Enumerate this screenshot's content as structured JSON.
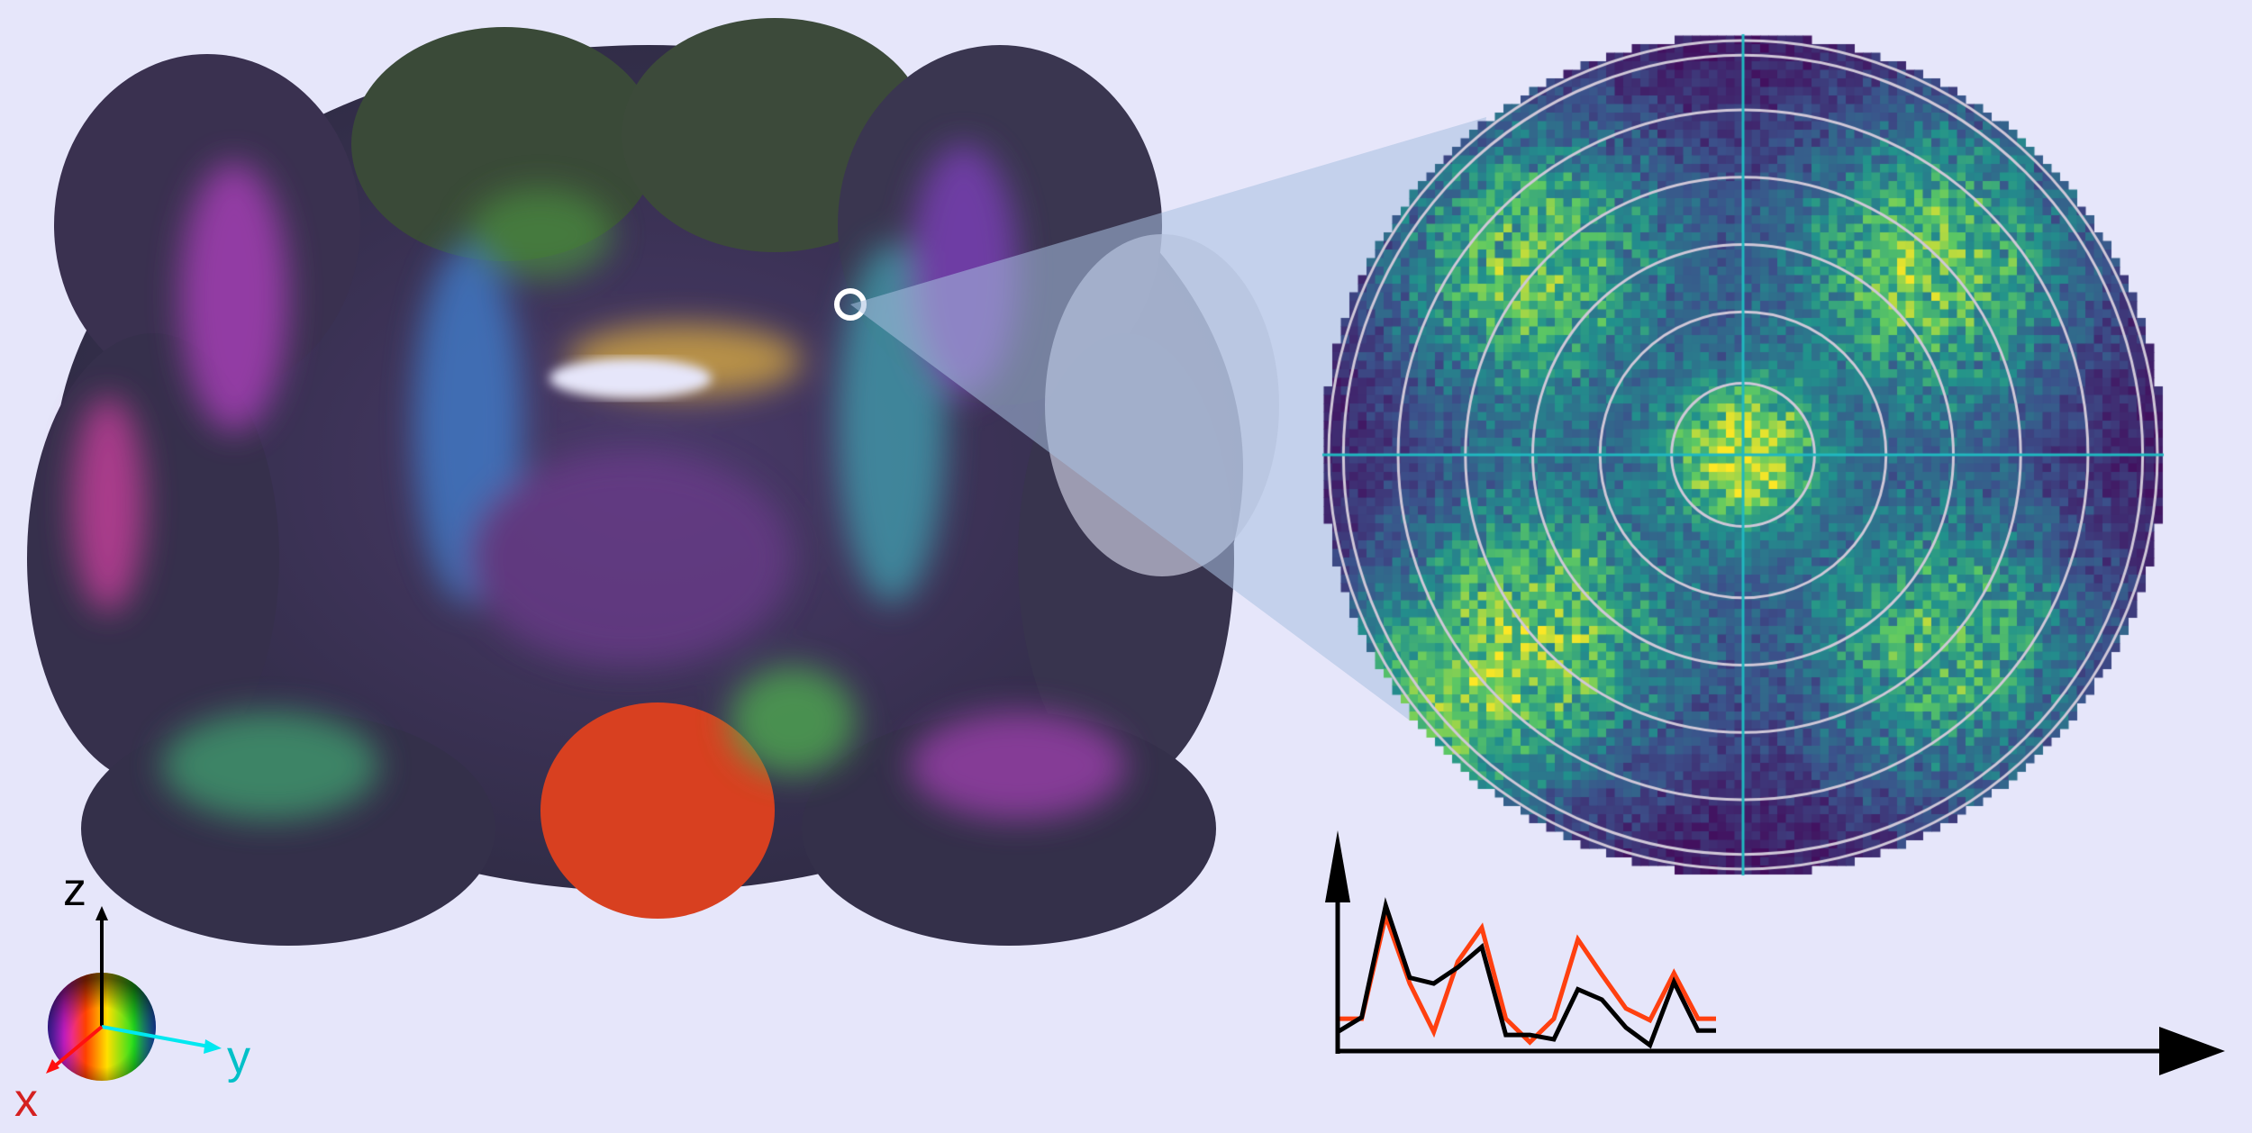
{
  "figure": {
    "background_color": "#e6e6fa",
    "brain_section": {
      "description_icon": "brain-coronal-section-fiber-orientation-map",
      "marker_color": "#ffffff"
    },
    "orientation_legend": {
      "axes": [
        {
          "label": "z",
          "color": "#000000"
        },
        {
          "label": "y",
          "color": "#00c8c8"
        },
        {
          "label": "x",
          "color": "#d42020"
        }
      ]
    },
    "polar_heatmap": {
      "colormap": "viridis",
      "ring_color": "#d0c8d8",
      "crosshair_color": "#20b8c0",
      "ring_count": 7
    }
  },
  "chart_data": {
    "type": "line",
    "title": "",
    "xlabel": "",
    "ylabel": "",
    "x": [
      0,
      1,
      2,
      3,
      4,
      5,
      6,
      7,
      8,
      9,
      10,
      11,
      12,
      13,
      14,
      15,
      16
    ],
    "ylim": [
      0,
      1.1
    ],
    "grid": false,
    "series": [
      {
        "color": "#ff4010",
        "values": [
          0.22,
          0.22,
          0.92,
          0.46,
          0.13,
          0.61,
          0.84,
          0.22,
          0.06,
          0.22,
          0.76,
          0.52,
          0.29,
          0.21,
          0.53,
          0.22,
          0.22
        ]
      },
      {
        "color": "#000000",
        "values": [
          0.13,
          0.23,
          0.99,
          0.5,
          0.46,
          0.57,
          0.71,
          0.11,
          0.11,
          0.08,
          0.42,
          0.35,
          0.16,
          0.04,
          0.47,
          0.14,
          0.14
        ]
      }
    ]
  }
}
